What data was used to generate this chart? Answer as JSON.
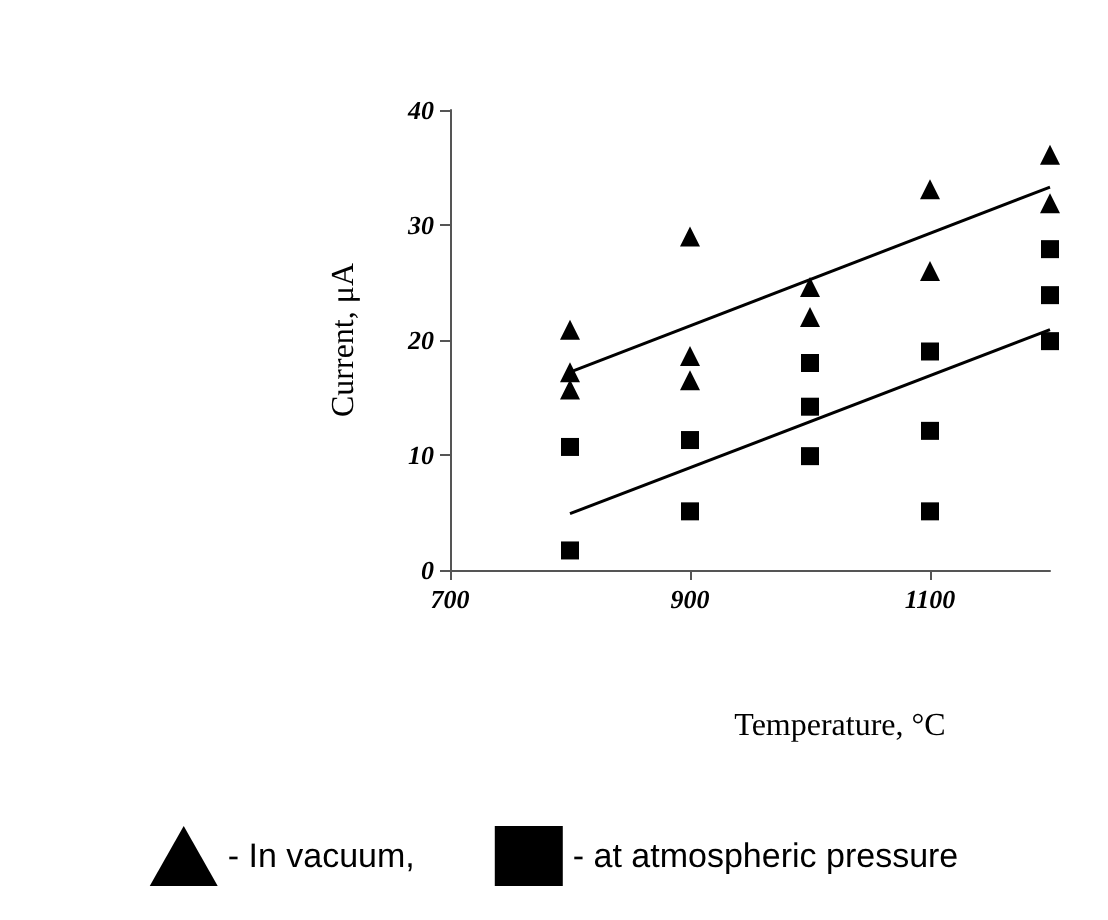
{
  "chart_data": {
    "type": "scatter",
    "xlabel": "Temperature, °C",
    "ylabel": "Current, μA",
    "xlim": [
      700,
      1200
    ],
    "xticks": [
      700,
      900,
      1100
    ],
    "ylim": [
      0,
      40
    ],
    "yticks": [
      0,
      10,
      20,
      30,
      40
    ],
    "grid": false,
    "legend": "bottom",
    "series": [
      {
        "name": "- In vacuum,",
        "color": "#000000",
        "marker": "triangle",
        "x": [
          800,
          800,
          800,
          900,
          900,
          900,
          1000,
          1000,
          1100,
          1100,
          1200,
          1200
        ],
        "values": [
          20.9,
          17.2,
          15.7,
          29,
          18.6,
          16.5,
          24.6,
          22,
          33.1,
          26,
          36.1,
          31.9
        ]
      },
      {
        "name": "- at atmospheric pressure",
        "color": "#000000",
        "marker": "square",
        "x": [
          800,
          800,
          900,
          900,
          1000,
          1000,
          1000,
          1100,
          1100,
          1100,
          1200,
          1200,
          1200
        ],
        "values": [
          10.7,
          1.7,
          11.3,
          5.1,
          18,
          14.2,
          9.9,
          19,
          12.1,
          5.1,
          27.9,
          23.9,
          19.9
        ]
      },
      {
        "type": "line",
        "color": "#000000",
        "marker": "none",
        "x": [
          800,
          1200
        ],
        "values": [
          17.2,
          33.3
        ]
      },
      {
        "type": "line",
        "color": "#000000",
        "marker": "none",
        "x": [
          800,
          1200
        ],
        "values": [
          4.9,
          20.9
        ]
      }
    ]
  }
}
